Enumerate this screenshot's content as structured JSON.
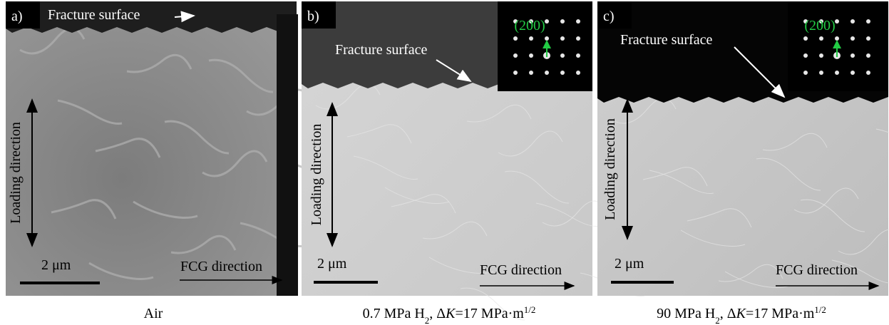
{
  "panels": [
    {
      "label": "a)",
      "fracture_label": "Fracture surface",
      "loading_label": "Loading direction",
      "scale_label": "2 μm",
      "fcg_label": "FCG direction",
      "caption": [
        {
          "text": "Air"
        }
      ]
    },
    {
      "label": "b)",
      "fracture_label": "Fracture surface",
      "loading_label": "Loading direction",
      "scale_label": "2 μm",
      "fcg_label": "FCG direction",
      "inset_label": "(200)",
      "caption": [
        {
          "text": "0.7 MPa H"
        },
        {
          "text": "2",
          "sub": true
        },
        {
          "text": ", Δ"
        },
        {
          "text": "K",
          "italic": true
        },
        {
          "text": "=17 MPa·m"
        },
        {
          "text": "1/2",
          "sup": true
        }
      ]
    },
    {
      "label": "c)",
      "fracture_label": "Fracture surface",
      "loading_label": "Loading direction",
      "scale_label": "2 μm",
      "fcg_label": "FCG direction",
      "inset_label": "(200)",
      "caption": [
        {
          "text": "90 MPa H"
        },
        {
          "text": "2",
          "sub": true
        },
        {
          "text": ", Δ"
        },
        {
          "text": "K",
          "italic": true
        },
        {
          "text": "=17 MPa·m"
        },
        {
          "text": "1/2",
          "sup": true
        }
      ]
    }
  ]
}
